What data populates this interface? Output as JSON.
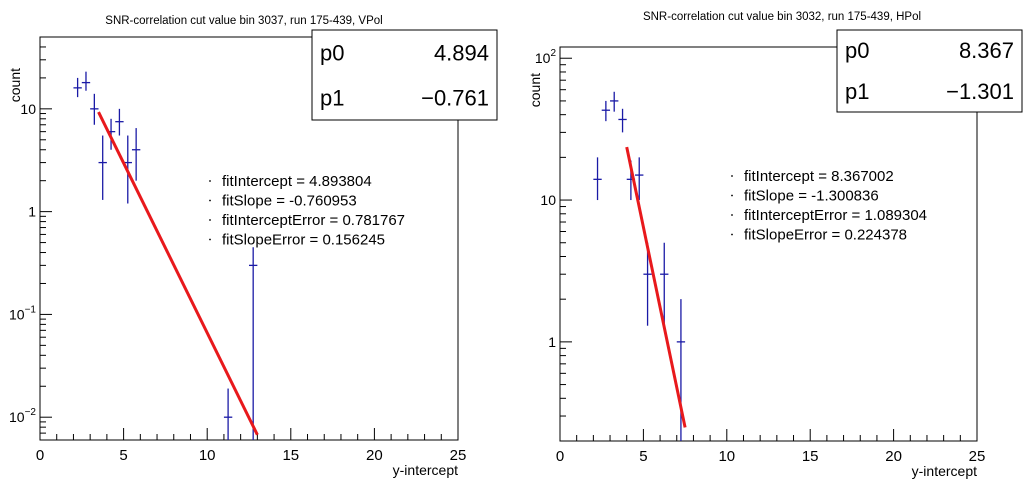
{
  "chart_data": [
    {
      "type": "scatter",
      "title": "SNR-correlation cut value bin 3037, run 175-439, VPol",
      "xlabel": "y-intercept",
      "ylabel": "count",
      "xlim": [
        0,
        25
      ],
      "ylim": [
        0.006,
        50
      ],
      "yscale": "log",
      "xticks": [
        0,
        5,
        10,
        15,
        20,
        25
      ],
      "yticks": [
        {
          "value": 0.01,
          "base": "10",
          "exp": "−2"
        },
        {
          "value": 0.1,
          "base": "10",
          "exp": "−1"
        },
        {
          "value": 1,
          "base": "1",
          "exp": ""
        },
        {
          "value": 10,
          "base": "10",
          "exp": ""
        }
      ],
      "series": [
        {
          "points": [
            {
              "x": 2.25,
              "y": 16,
              "lo": 13,
              "hi": 20
            },
            {
              "x": 2.75,
              "y": 18,
              "lo": 15,
              "hi": 23
            },
            {
              "x": 3.25,
              "y": 10,
              "lo": 7,
              "hi": 14
            },
            {
              "x": 3.75,
              "y": 3,
              "lo": 1.3,
              "hi": 5.5
            },
            {
              "x": 4.25,
              "y": 6,
              "lo": 4,
              "hi": 8
            },
            {
              "x": 4.75,
              "y": 7.5,
              "lo": 5.5,
              "hi": 10
            },
            {
              "x": 5.25,
              "y": 3,
              "lo": 1.2,
              "hi": 5.5
            },
            {
              "x": 5.75,
              "y": 4,
              "lo": 2,
              "hi": 6.5
            },
            {
              "x": 11.25,
              "y": 0.01,
              "lo": 0.005,
              "hi": 0.019
            },
            {
              "x": 12.75,
              "y": 0.3,
              "lo": 0.005,
              "hi": 0.45
            }
          ]
        }
      ],
      "fit": {
        "p0": 4.893804,
        "p1": -0.760953,
        "x_from": 3.5,
        "x_to": 13.0,
        "color": "#e8191c"
      },
      "stats": {
        "rows": [
          {
            "label": "p0",
            "value": "4.894"
          },
          {
            "label": "p1",
            "value": "−0.761"
          }
        ]
      },
      "fit_text": [
        "fitIntercept = 4.893804",
        "fitSlope = -0.760953",
        "fitInterceptError = 0.781767",
        "fitSlopeError = 0.156245"
      ],
      "point_color": "#1a1aa6"
    },
    {
      "type": "scatter",
      "title": "SNR-correlation cut value bin 3032, run 175-439, HPol",
      "xlabel": "y-intercept",
      "ylabel": "count",
      "xlim": [
        0,
        25
      ],
      "ylim": [
        0.2,
        120
      ],
      "yscale": "log",
      "xticks": [
        0,
        5,
        10,
        15,
        20,
        25
      ],
      "yticks": [
        {
          "value": 1,
          "base": "1",
          "exp": ""
        },
        {
          "value": 10,
          "base": "10",
          "exp": ""
        },
        {
          "value": 100,
          "base": "10",
          "exp": "2"
        }
      ],
      "series": [
        {
          "points": [
            {
              "x": 2.25,
              "y": 14,
              "lo": 10,
              "hi": 20
            },
            {
              "x": 2.75,
              "y": 43,
              "lo": 36,
              "hi": 50
            },
            {
              "x": 3.25,
              "y": 50,
              "lo": 42,
              "hi": 58
            },
            {
              "x": 3.75,
              "y": 37,
              "lo": 30,
              "hi": 44
            },
            {
              "x": 4.25,
              "y": 14,
              "lo": 10,
              "hi": 19
            },
            {
              "x": 4.75,
              "y": 15,
              "lo": 10,
              "hi": 20
            },
            {
              "x": 5.25,
              "y": 3,
              "lo": 1.3,
              "hi": 5
            },
            {
              "x": 6.25,
              "y": 3,
              "lo": 1.3,
              "hi": 5
            },
            {
              "x": 7.25,
              "y": 1,
              "lo": 0.2,
              "hi": 2
            }
          ]
        }
      ],
      "fit": {
        "p0": 8.367002,
        "p1": -1.300836,
        "x_from": 4.0,
        "x_to": 7.5,
        "color": "#e8191c"
      },
      "stats": {
        "rows": [
          {
            "label": "p0",
            "value": "8.367"
          },
          {
            "label": "p1",
            "value": "−1.301"
          }
        ]
      },
      "fit_text": [
        "fitIntercept = 8.367002",
        "fitSlope = -1.300836",
        "fitInterceptError = 1.089304",
        "fitSlopeError = 0.224378"
      ],
      "point_color": "#1a1aa6"
    }
  ]
}
